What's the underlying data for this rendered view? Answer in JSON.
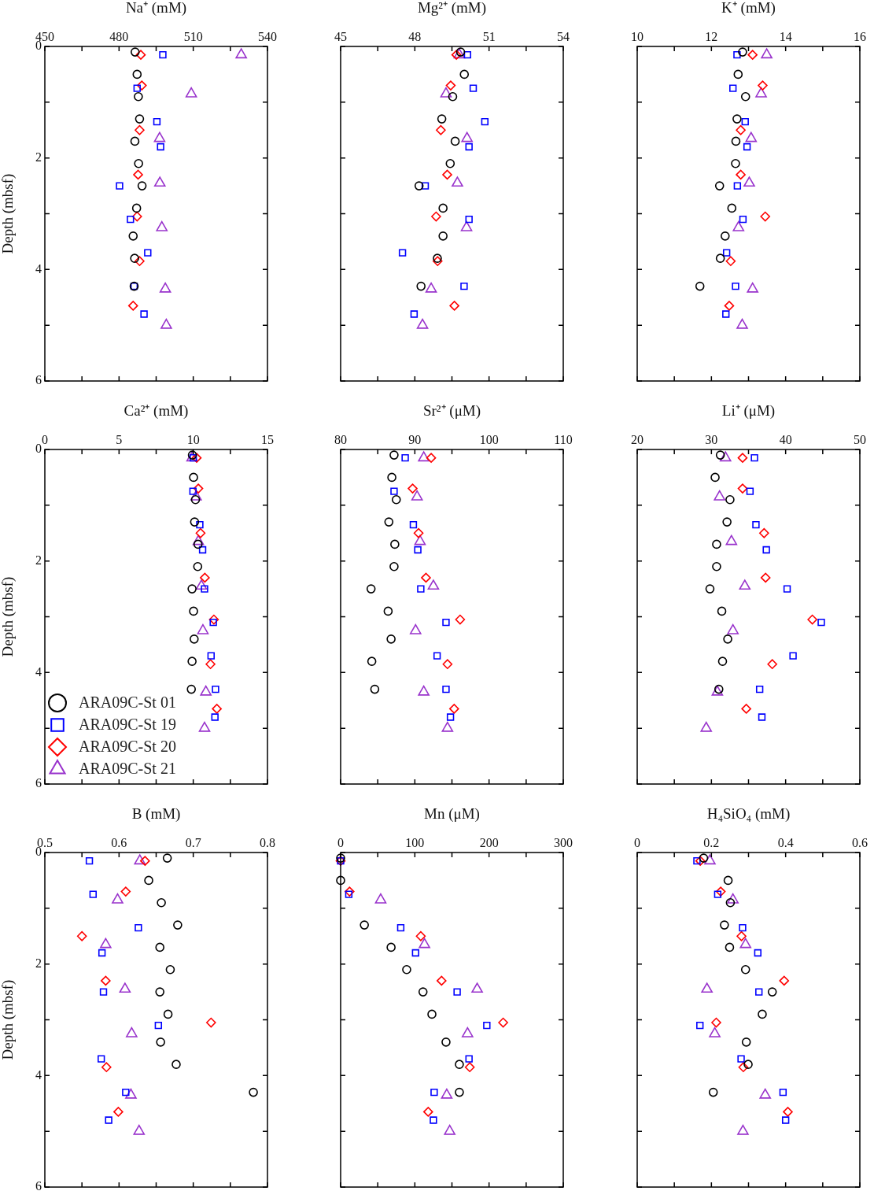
{
  "chart_data": [
    {
      "type": "scatter",
      "xlabel": "Na⁺ (mM)",
      "ylabel": "Depth (mbsf)",
      "xlim": [
        450,
        540
      ],
      "xticks": [
        450,
        {
          "value": 465,
          "label": null
        },
        480,
        {
          "value": 495,
          "label": null
        },
        510,
        {
          "value": 525,
          "label": null
        },
        540
      ],
      "ylim": [
        6,
        0
      ],
      "yticks": [
        0,
        {
          "value": 1,
          "label": null
        },
        2,
        {
          "value": 3,
          "label": null
        },
        4,
        {
          "value": 5,
          "label": null
        },
        6
      ],
      "series": [
        {
          "color": "#000000",
          "marker": "circle",
          "x": [
            486.5,
            487.3,
            487.8,
            488.3,
            486.4,
            487.9,
            489.3,
            487.1,
            485.7,
            486.3,
            486.1
          ],
          "values": [
            0.1,
            0.5,
            0.9,
            1.3,
            1.7,
            2.1,
            2.5,
            2.9,
            3.4,
            3.8,
            4.3
          ]
        },
        {
          "color": "#0000ff",
          "marker": "square",
          "x": [
            497.7,
            487.3,
            495.3,
            496.8,
            480.2,
            484.6,
            491.6,
            486.1,
            490.1
          ],
          "values": [
            0.15,
            0.75,
            1.35,
            1.8,
            2.5,
            3.1,
            3.7,
            4.3,
            4.8
          ]
        },
        {
          "color": "#ff0000",
          "marker": "diamond",
          "x": [
            488.8,
            489.2,
            488.3,
            487.7,
            487.3,
            488.3,
            485.7
          ],
          "values": [
            0.15,
            0.7,
            1.5,
            2.3,
            3.05,
            3.85,
            4.65
          ]
        },
        {
          "color": "#9933cc",
          "marker": "triangle",
          "x": [
            529.4,
            509.2,
            496.4,
            496.5,
            497.3,
            498.7,
            499.1
          ],
          "values": [
            0.15,
            0.85,
            1.65,
            2.45,
            3.25,
            4.35,
            5.0
          ]
        }
      ]
    },
    {
      "type": "scatter",
      "xlabel": "Mg²⁺ (mM)",
      "tick_labels": "x",
      "xlim": [
        45,
        54
      ],
      "xticks": [
        45,
        {
          "value": 46.5,
          "label": null
        },
        48,
        {
          "value": 49.5,
          "label": null
        },
        51,
        {
          "value": 52.5,
          "label": null
        },
        54
      ],
      "ylim": [
        6,
        0
      ],
      "yticks": [
        0,
        {
          "value": 1,
          "label": null
        },
        2,
        {
          "value": 3,
          "label": null
        },
        4,
        {
          "value": 5,
          "label": null
        },
        6
      ],
      "series": [
        {
          "color": "#000000",
          "marker": "circle",
          "x": [
            49.85,
            50.0,
            49.53,
            49.09,
            49.63,
            49.43,
            48.17,
            49.14,
            49.14,
            48.91,
            48.25
          ],
          "values": [
            0.1,
            0.5,
            0.9,
            1.3,
            1.7,
            2.1,
            2.5,
            2.9,
            3.4,
            3.8,
            4.3
          ]
        },
        {
          "color": "#0000ff",
          "marker": "square",
          "x": [
            50.13,
            50.36,
            50.83,
            50.19,
            48.42,
            50.19,
            47.5,
            49.99,
            47.97
          ],
          "values": [
            0.15,
            0.75,
            1.35,
            1.8,
            2.5,
            3.1,
            3.7,
            4.3,
            4.8
          ]
        },
        {
          "color": "#ff0000",
          "marker": "diamond",
          "x": [
            49.68,
            49.45,
            49.05,
            49.31,
            48.86,
            48.92,
            49.6
          ],
          "values": [
            0.15,
            0.7,
            1.5,
            2.3,
            3.05,
            3.85,
            4.65
          ]
        },
        {
          "color": "#9933cc",
          "marker": "triangle",
          "x": [
            49.8,
            49.26,
            50.11,
            49.72,
            50.09,
            48.66,
            48.31
          ],
          "values": [
            0.15,
            0.85,
            1.65,
            2.45,
            3.25,
            4.35,
            5.0
          ]
        }
      ]
    },
    {
      "type": "scatter",
      "xlabel": "K⁺ (mM)",
      "tick_labels": "x",
      "xlim": [
        10,
        16
      ],
      "xticks": [
        10,
        {
          "value": 11,
          "label": null
        },
        12,
        {
          "value": 13,
          "label": null
        },
        14,
        {
          "value": 15,
          "label": null
        },
        16
      ],
      "ylim": [
        6,
        0
      ],
      "yticks": [
        0,
        {
          "value": 1,
          "label": null
        },
        2,
        {
          "value": 3,
          "label": null
        },
        4,
        {
          "value": 5,
          "label": null
        },
        6
      ],
      "series": [
        {
          "color": "#000000",
          "marker": "circle",
          "x": [
            12.84,
            12.72,
            12.92,
            12.69,
            12.66,
            12.65,
            12.22,
            12.55,
            12.37,
            12.24,
            11.69
          ],
          "values": [
            0.1,
            0.5,
            0.9,
            1.3,
            1.7,
            2.1,
            2.5,
            2.9,
            3.4,
            3.8,
            4.3
          ]
        },
        {
          "color": "#0000ff",
          "marker": "square",
          "x": [
            12.69,
            12.58,
            12.91,
            12.96,
            12.7,
            12.85,
            12.41,
            12.65,
            12.39
          ],
          "values": [
            0.15,
            0.75,
            1.35,
            1.8,
            2.5,
            3.1,
            3.7,
            4.3,
            4.8
          ]
        },
        {
          "color": "#ff0000",
          "marker": "diamond",
          "x": [
            13.11,
            13.38,
            12.79,
            12.79,
            13.45,
            12.52,
            12.48
          ],
          "values": [
            0.15,
            0.7,
            1.5,
            2.3,
            3.05,
            3.85,
            4.65
          ]
        },
        {
          "color": "#9933cc",
          "marker": "triangle",
          "x": [
            13.49,
            13.34,
            13.07,
            13.02,
            12.73,
            13.11,
            12.83
          ],
          "values": [
            0.15,
            0.85,
            1.65,
            2.45,
            3.25,
            4.35,
            5.0
          ]
        }
      ]
    },
    {
      "type": "scatter",
      "xlabel": "Ca²⁺ (mM)",
      "ylabel": "Depth (mbsf)",
      "legend": "bottom left",
      "xlim": [
        0,
        15
      ],
      "xticks": [
        0,
        {
          "value": 2.5,
          "label": null
        },
        5,
        {
          "value": 7.5,
          "label": null
        },
        10,
        {
          "value": 12.5,
          "label": null
        },
        15
      ],
      "ylim": [
        6,
        0
      ],
      "yticks": [
        0,
        {
          "value": 1,
          "label": null
        },
        2,
        {
          "value": 3,
          "label": null
        },
        4,
        {
          "value": 5,
          "label": null
        },
        6
      ],
      "series": [
        {
          "name": "ARA09C-St 01",
          "color": "#000000",
          "marker": "circle",
          "x": [
            9.94,
            10.02,
            10.15,
            10.09,
            10.32,
            10.3,
            9.92,
            10.02,
            10.06,
            9.92,
            9.87
          ],
          "values": [
            0.1,
            0.5,
            0.9,
            1.3,
            1.7,
            2.1,
            2.5,
            2.9,
            3.4,
            3.8,
            4.3
          ]
        },
        {
          "name": "ARA09C-St 19",
          "color": "#0000ff",
          "marker": "square",
          "x": [
            10.0,
            9.98,
            10.44,
            10.63,
            10.76,
            11.35,
            11.2,
            11.5,
            11.46
          ],
          "values": [
            0.15,
            0.75,
            1.35,
            1.8,
            2.5,
            3.1,
            3.7,
            4.3,
            4.8
          ]
        },
        {
          "name": "ARA09C-St 20",
          "color": "#ff0000",
          "marker": "diamond",
          "x": [
            10.23,
            10.34,
            10.49,
            10.78,
            11.39,
            11.16,
            11.59
          ],
          "values": [
            0.15,
            0.7,
            1.5,
            2.3,
            3.05,
            3.85,
            4.65
          ]
        },
        {
          "name": "ARA09C-St 21",
          "color": "#9933cc",
          "marker": "triangle",
          "x": [
            9.92,
            10.19,
            10.34,
            10.55,
            10.65,
            10.85,
            10.76
          ],
          "values": [
            0.15,
            0.85,
            1.65,
            2.45,
            3.25,
            4.35,
            5.0
          ]
        }
      ]
    },
    {
      "type": "scatter",
      "xlabel": "Sr²⁺ (μM)",
      "tick_labels": "x",
      "xlim": [
        80,
        110
      ],
      "xticks": [
        80,
        {
          "value": 85,
          "label": null
        },
        90,
        {
          "value": 95,
          "label": null
        },
        100,
        {
          "value": 105,
          "label": null
        },
        110
      ],
      "ylim": [
        6,
        0
      ],
      "yticks": [
        0,
        {
          "value": 1,
          "label": null
        },
        2,
        {
          "value": 3,
          "label": null
        },
        4,
        {
          "value": 5,
          "label": null
        },
        6
      ],
      "series": [
        {
          "color": "#000000",
          "marker": "circle",
          "x": [
            87.2,
            86.9,
            87.5,
            86.5,
            87.3,
            87.2,
            84.1,
            86.4,
            86.8,
            84.2,
            84.6
          ],
          "values": [
            0.1,
            0.5,
            0.9,
            1.3,
            1.7,
            2.1,
            2.5,
            2.9,
            3.4,
            3.8,
            4.3
          ]
        },
        {
          "color": "#0000ff",
          "marker": "square",
          "x": [
            88.7,
            87.2,
            89.8,
            90.4,
            90.8,
            94.2,
            93.0,
            94.2,
            94.8
          ],
          "values": [
            0.15,
            0.75,
            1.35,
            1.8,
            2.5,
            3.1,
            3.7,
            4.3,
            4.8
          ]
        },
        {
          "color": "#ff0000",
          "marker": "diamond",
          "x": [
            92.2,
            89.7,
            90.5,
            91.5,
            96.1,
            94.4,
            95.3
          ],
          "values": [
            0.15,
            0.7,
            1.5,
            2.3,
            3.05,
            3.85,
            4.65
          ]
        },
        {
          "color": "#9933cc",
          "marker": "triangle",
          "x": [
            91.2,
            90.3,
            90.7,
            92.5,
            90.1,
            91.2,
            94.4
          ],
          "values": [
            0.15,
            0.85,
            1.65,
            2.45,
            3.25,
            4.35,
            5.0
          ]
        }
      ]
    },
    {
      "type": "scatter",
      "xlabel": "Li⁺ (μM)",
      "tick_labels": "x",
      "xlim": [
        20,
        50
      ],
      "xticks": [
        20,
        {
          "value": 25,
          "label": null
        },
        30,
        {
          "value": 35,
          "label": null
        },
        40,
        {
          "value": 45,
          "label": null
        },
        50
      ],
      "ylim": [
        6,
        0
      ],
      "yticks": [
        0,
        {
          "value": 1,
          "label": null
        },
        2,
        {
          "value": 3,
          "label": null
        },
        4,
        {
          "value": 5,
          "label": null
        },
        6
      ],
      "series": [
        {
          "color": "#000000",
          "marker": "circle",
          "x": [
            31.2,
            30.5,
            32.5,
            32.1,
            30.7,
            30.7,
            29.8,
            31.4,
            32.2,
            31.5,
            31.0
          ],
          "values": [
            0.1,
            0.5,
            0.9,
            1.3,
            1.7,
            2.1,
            2.5,
            2.9,
            3.4,
            3.8,
            4.3
          ]
        },
        {
          "color": "#0000ff",
          "marker": "square",
          "x": [
            35.8,
            35.2,
            36.0,
            37.4,
            40.2,
            44.8,
            41.0,
            36.5,
            36.8
          ],
          "values": [
            0.15,
            0.75,
            1.35,
            1.8,
            2.5,
            3.1,
            3.7,
            4.3,
            4.8
          ]
        },
        {
          "color": "#ff0000",
          "marker": "diamond",
          "x": [
            34.2,
            34.2,
            37.1,
            37.3,
            43.6,
            38.2,
            34.7
          ],
          "values": [
            0.15,
            0.7,
            1.5,
            2.3,
            3.05,
            3.85,
            4.65
          ]
        },
        {
          "color": "#9933cc",
          "marker": "triangle",
          "x": [
            31.9,
            31.1,
            32.7,
            34.5,
            32.9,
            30.8,
            29.3
          ],
          "values": [
            0.15,
            0.85,
            1.65,
            2.45,
            3.25,
            4.35,
            5.0
          ]
        }
      ]
    },
    {
      "type": "scatter",
      "xlabel": "B (mM)",
      "ylabel": "Depth (mbsf)",
      "xlim": [
        0.5,
        0.8
      ],
      "xticks": [
        0.5,
        {
          "value": 0.55,
          "label": null
        },
        0.6,
        {
          "value": 0.65,
          "label": null
        },
        0.7,
        {
          "value": 0.75,
          "label": null
        },
        0.8
      ],
      "ylim": [
        6,
        0
      ],
      "yticks": [
        0,
        {
          "value": 1,
          "label": null
        },
        2,
        {
          "value": 3,
          "label": null
        },
        4,
        {
          "value": 5,
          "label": null
        },
        6
      ],
      "series": [
        {
          "color": "#000000",
          "marker": "circle",
          "x": [
            0.665,
            0.64,
            0.657,
            0.679,
            0.655,
            0.669,
            0.655,
            0.666,
            0.656,
            0.677,
            0.781
          ],
          "values": [
            0.1,
            0.5,
            0.9,
            1.3,
            1.7,
            2.1,
            2.5,
            2.9,
            3.4,
            3.8,
            4.3
          ]
        },
        {
          "color": "#0000ff",
          "marker": "square",
          "x": [
            0.56,
            0.565,
            0.626,
            0.577,
            0.579,
            0.653,
            0.576,
            0.609,
            0.586
          ],
          "values": [
            0.15,
            0.75,
            1.35,
            1.8,
            2.5,
            3.1,
            3.7,
            4.3,
            4.8
          ]
        },
        {
          "color": "#ff0000",
          "marker": "diamond",
          "x": [
            0.635,
            0.609,
            0.55,
            0.582,
            0.724,
            0.583,
            0.599
          ],
          "values": [
            0.15,
            0.7,
            1.5,
            2.3,
            3.05,
            3.85,
            4.65
          ]
        },
        {
          "color": "#9933cc",
          "marker": "triangle",
          "x": [
            0.628,
            0.598,
            0.582,
            0.608,
            0.617,
            0.616,
            0.627
          ],
          "values": [
            0.15,
            0.85,
            1.65,
            2.45,
            3.25,
            4.35,
            5.0
          ]
        }
      ]
    },
    {
      "type": "scatter",
      "xlabel": "Mn (μM)",
      "tick_labels": "x",
      "xlim": [
        0,
        300
      ],
      "xticks": [
        0,
        {
          "value": 50,
          "label": null
        },
        100,
        {
          "value": 150,
          "label": null
        },
        200,
        {
          "value": 250,
          "label": null
        },
        300
      ],
      "ylim": [
        6,
        0
      ],
      "yticks": [
        0,
        {
          "value": 1,
          "label": null
        },
        2,
        {
          "value": 3,
          "label": null
        },
        4,
        {
          "value": 5,
          "label": null
        },
        6
      ],
      "series": [
        {
          "color": "#000000",
          "marker": "circle",
          "x": [
            0,
            0,
            32,
            68,
            89,
            111,
            123,
            142,
            160,
            160
          ],
          "values": [
            0.1,
            0.5,
            1.3,
            1.7,
            2.1,
            2.5,
            2.9,
            3.4,
            3.8,
            4.3
          ]
        },
        {
          "color": "#0000ff",
          "marker": "square",
          "x": [
            0,
            11,
            81,
            101,
            157,
            197,
            173,
            126,
            125
          ],
          "values": [
            0.15,
            0.75,
            1.35,
            1.8,
            2.5,
            3.1,
            3.7,
            4.3,
            4.8
          ]
        },
        {
          "color": "#ff0000",
          "marker": "diamond",
          "x": [
            0,
            12,
            108,
            136,
            219,
            174,
            118
          ],
          "values": [
            0.15,
            0.7,
            1.5,
            2.3,
            3.05,
            3.85,
            4.65
          ]
        },
        {
          "color": "#9933cc",
          "marker": "triangle",
          "x": [
            54,
            113,
            184,
            171,
            143,
            147
          ],
          "values": [
            0.85,
            1.65,
            2.45,
            3.25,
            4.35,
            5.0
          ]
        }
      ]
    },
    {
      "type": "scatter",
      "xlabel": "H₄SiO₄ (mM)",
      "tick_labels": "x",
      "xlim": [
        0,
        0.6
      ],
      "xticks": [
        0,
        {
          "value": 0.1,
          "label": null
        },
        0.2,
        {
          "value": 0.3,
          "label": null
        },
        0.4,
        {
          "value": 0.5,
          "label": null
        },
        0.6
      ],
      "ylim": [
        6,
        0
      ],
      "yticks": [
        0,
        {
          "value": 1,
          "label": null
        },
        2,
        {
          "value": 3,
          "label": null
        },
        4,
        {
          "value": 5,
          "label": null
        },
        6
      ],
      "series": [
        {
          "color": "#000000",
          "marker": "circle",
          "x": [
            0.179,
            0.245,
            0.251,
            0.235,
            0.249,
            0.292,
            0.364,
            0.337,
            0.294,
            0.299,
            0.205
          ],
          "values": [
            0.1,
            0.5,
            0.9,
            1.3,
            1.7,
            2.1,
            2.5,
            2.9,
            3.4,
            3.8,
            4.3
          ]
        },
        {
          "color": "#0000ff",
          "marker": "square",
          "x": [
            0.161,
            0.217,
            0.284,
            0.325,
            0.328,
            0.169,
            0.28,
            0.393,
            0.4
          ],
          "values": [
            0.15,
            0.75,
            1.35,
            1.8,
            2.5,
            3.1,
            3.7,
            4.3,
            4.8
          ]
        },
        {
          "color": "#ff0000",
          "marker": "diamond",
          "x": [
            0.17,
            0.225,
            0.281,
            0.396,
            0.213,
            0.286,
            0.406
          ],
          "values": [
            0.15,
            0.7,
            1.5,
            2.3,
            3.05,
            3.85,
            4.65
          ]
        },
        {
          "color": "#9933cc",
          "marker": "triangle",
          "x": [
            0.196,
            0.258,
            0.292,
            0.188,
            0.209,
            0.345,
            0.285
          ],
          "values": [
            0.15,
            0.85,
            1.65,
            2.45,
            3.25,
            4.35,
            5.0
          ]
        }
      ]
    }
  ]
}
